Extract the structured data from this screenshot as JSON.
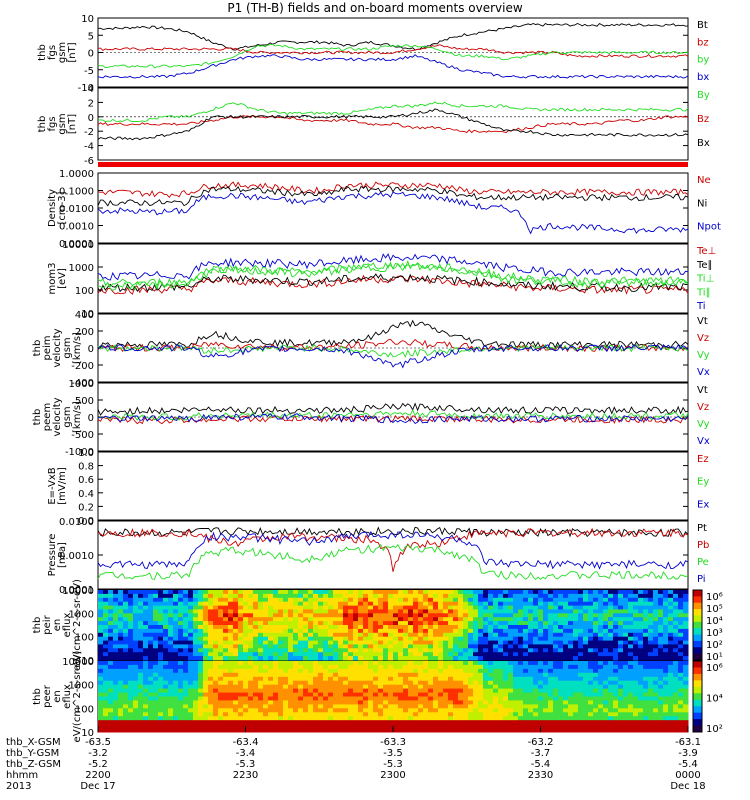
{
  "title": "P1  (TH-B) fields and on-board moments overview",
  "colors": {
    "black": "#000000",
    "red": "#cc0000",
    "green": "#22dd22",
    "blue": "#0000cc"
  },
  "chart_data": [
    {
      "type": "line",
      "ylabel": "thb fgs gsm [nT]",
      "ylim": [
        -10,
        10
      ],
      "yticks": [
        "10",
        "5",
        "0",
        "-5",
        "-10"
      ],
      "series": [
        {
          "name": "Bt",
          "color": "black",
          "values": [
            7,
            7,
            7.5,
            7,
            6,
            3,
            1,
            2,
            3,
            3,
            3,
            2,
            3,
            2,
            1,
            3,
            5,
            6,
            7,
            8,
            8,
            8,
            8,
            8,
            8,
            8,
            8
          ]
        },
        {
          "name": "bz",
          "color": "red",
          "values": [
            1,
            1,
            1,
            1,
            1,
            1,
            1,
            0,
            0,
            0,
            0,
            0,
            0,
            0,
            1,
            2,
            1,
            1,
            0,
            0,
            0,
            -1,
            -1,
            -1,
            -1,
            -1,
            -1
          ]
        },
        {
          "name": "by",
          "color": "green",
          "values": [
            -4,
            -4,
            -4,
            -4,
            -4,
            -3,
            -1,
            2,
            2,
            1,
            1,
            1,
            1,
            2,
            2,
            1,
            -1,
            -1,
            -2,
            -1,
            0,
            0,
            0,
            0,
            0,
            0,
            0
          ]
        },
        {
          "name": "bx",
          "color": "blue",
          "values": [
            -7,
            -7,
            -7,
            -7,
            -6,
            -4,
            -2,
            -1,
            -1,
            -2,
            -2,
            -2,
            -2,
            -2,
            -1,
            -3,
            -5,
            -6,
            -7,
            -7,
            -7,
            -7,
            -7,
            -7,
            -7,
            -7,
            -7
          ]
        }
      ]
    },
    {
      "type": "line",
      "ylabel": "thb fgs gsm [nT]",
      "ylim": [
        -6,
        4
      ],
      "yticks": [
        "4",
        "2",
        "0",
        "-2",
        "-4",
        "-6"
      ],
      "series": [
        {
          "name": "By",
          "color": "green",
          "values": [
            -0.5,
            -0.5,
            -0.5,
            0,
            0,
            1,
            2,
            1,
            0.5,
            0.5,
            0.5,
            0.5,
            1,
            1.5,
            1.5,
            2,
            1.5,
            1.5,
            1.5,
            1,
            1,
            1,
            1,
            1,
            1,
            1,
            1
          ]
        },
        {
          "name": "Bz",
          "color": "red",
          "values": [
            -1,
            -1,
            -1,
            -1,
            -1,
            -0.5,
            0,
            0,
            0,
            -0.5,
            -0.5,
            -0.5,
            -1,
            -1,
            -1.5,
            -1.5,
            -2,
            -2,
            -2,
            -1.5,
            -1,
            -1,
            -1,
            -0.5,
            -0.5,
            0,
            0
          ]
        },
        {
          "name": "Bx",
          "color": "black",
          "values": [
            -3,
            -3,
            -3,
            -2.5,
            -2,
            0,
            0,
            0,
            0,
            0,
            0,
            0,
            0,
            0,
            0.5,
            1,
            0,
            -1,
            -2,
            -2,
            -2.5,
            -2.5,
            -2.5,
            -2.5,
            -2.5,
            -2.5,
            -2.5
          ]
        }
      ]
    },
    {
      "type": "line",
      "log": true,
      "ylabel": "Density [cm-3]",
      "ylim": [
        0.0001,
        1
      ],
      "yticks": [
        "1.0000",
        "0.1000",
        "0.0100",
        "0.0010",
        "0.0001"
      ],
      "series": [
        {
          "name": "Ne",
          "color": "red",
          "values": [
            0.08,
            0.08,
            0.07,
            0.06,
            0.07,
            0.2,
            0.2,
            0.2,
            0.15,
            0.1,
            0.1,
            0.2,
            0.2,
            0.2,
            0.2,
            0.2,
            0.1,
            0.08,
            0.08,
            0.08,
            0.08,
            0.08,
            0.08,
            0.08,
            0.08,
            0.08,
            0.08
          ]
        },
        {
          "name": "Ni",
          "color": "black",
          "values": [
            0.02,
            0.02,
            0.02,
            0.02,
            0.02,
            0.12,
            0.12,
            0.1,
            0.08,
            0.06,
            0.06,
            0.12,
            0.12,
            0.12,
            0.12,
            0.1,
            0.05,
            0.04,
            0.04,
            0.04,
            0.04,
            0.04,
            0.04,
            0.04,
            0.04,
            0.04,
            0.04
          ]
        },
        {
          "name": "Npot",
          "color": "blue",
          "values": [
            0.007,
            0.007,
            0.006,
            0.006,
            0.007,
            0.05,
            0.05,
            0.04,
            0.03,
            0.02,
            0.03,
            0.05,
            0.05,
            0.06,
            0.05,
            0.04,
            0.02,
            0.01,
            0.01,
            0.0005,
            0.001,
            0.0008,
            0.0007,
            0.0006,
            0.0005,
            0.0006,
            0.0006
          ]
        }
      ]
    },
    {
      "type": "line",
      "log": true,
      "ylabel": "mom3 [eV]",
      "ylim": [
        10,
        10000
      ],
      "yticks": [
        "10000",
        "1000",
        "100",
        "10"
      ],
      "series": [
        {
          "name": "Te⊥",
          "color": "red",
          "values": [
            100,
            100,
            100,
            110,
            110,
            250,
            250,
            220,
            200,
            180,
            200,
            250,
            300,
            300,
            300,
            250,
            200,
            180,
            150,
            120,
            120,
            110,
            100,
            100,
            100,
            100,
            100
          ]
        },
        {
          "name": "Te∥",
          "color": "black",
          "values": [
            130,
            130,
            130,
            140,
            140,
            300,
            300,
            280,
            260,
            230,
            250,
            300,
            350,
            350,
            350,
            300,
            250,
            220,
            180,
            150,
            150,
            140,
            130,
            130,
            130,
            130,
            130
          ]
        },
        {
          "name": "Ti⊥",
          "color": "green",
          "values": [
            200,
            200,
            200,
            220,
            230,
            800,
            900,
            800,
            700,
            600,
            700,
            900,
            1100,
            1200,
            1200,
            1000,
            800,
            600,
            400,
            300,
            300,
            250,
            250,
            250,
            250,
            250,
            250
          ]
        },
        {
          "name": "Ti∥",
          "color": "green",
          "values": [
            150,
            150,
            150,
            170,
            180,
            600,
            700,
            650,
            600,
            500,
            600,
            800,
            900,
            1000,
            1000,
            900,
            700,
            500,
            300,
            250,
            250,
            200,
            200,
            200,
            200,
            200,
            200
          ]
        },
        {
          "name": "Ti",
          "color": "blue",
          "values": [
            400,
            400,
            400,
            450,
            450,
            1500,
            1600,
            1500,
            1400,
            1300,
            1500,
            1800,
            2200,
            2500,
            2500,
            2200,
            1800,
            1300,
            900,
            700,
            600,
            600,
            600,
            600,
            600,
            600,
            600
          ]
        }
      ]
    },
    {
      "type": "line",
      "ylabel": "thb peim velocity gsm [km/s]",
      "ylim": [
        -400,
        400
      ],
      "yticks": [
        "400",
        "200",
        "0",
        "-200",
        "-400"
      ],
      "series": [
        {
          "name": "Vt",
          "color": "black",
          "values": [
            40,
            40,
            40,
            40,
            40,
            180,
            120,
            80,
            60,
            60,
            60,
            80,
            120,
            250,
            300,
            200,
            120,
            60,
            50,
            40,
            40,
            40,
            40,
            40,
            40,
            40,
            40
          ]
        },
        {
          "name": "Vz",
          "color": "red",
          "values": [
            0,
            0,
            0,
            0,
            0,
            50,
            30,
            20,
            10,
            10,
            10,
            20,
            40,
            80,
            60,
            40,
            20,
            0,
            0,
            0,
            0,
            0,
            0,
            0,
            0,
            0,
            0
          ]
        },
        {
          "name": "Vy",
          "color": "green",
          "values": [
            0,
            0,
            0,
            0,
            0,
            -30,
            -20,
            -10,
            0,
            0,
            0,
            -20,
            -50,
            -80,
            -60,
            -40,
            -20,
            0,
            0,
            0,
            0,
            0,
            0,
            0,
            0,
            0,
            0
          ]
        },
        {
          "name": "Vx",
          "color": "blue",
          "values": [
            0,
            0,
            0,
            0,
            0,
            -100,
            -60,
            -20,
            -10,
            -10,
            -10,
            -40,
            -100,
            -220,
            -150,
            -80,
            -40,
            -10,
            0,
            0,
            0,
            0,
            0,
            0,
            0,
            0,
            0
          ]
        }
      ]
    },
    {
      "type": "line",
      "ylabel": "thb peem velocity gsm [km/s]",
      "ylim": [
        -1000,
        1000
      ],
      "yticks": [
        "1000",
        "500",
        "0",
        "-500",
        "-1000"
      ],
      "series": [
        {
          "name": "Vt",
          "color": "black",
          "values": [
            150,
            150,
            200,
            180,
            200,
            250,
            220,
            200,
            200,
            200,
            200,
            200,
            250,
            300,
            300,
            280,
            250,
            220,
            200,
            200,
            200,
            200,
            200,
            200,
            200,
            200,
            200
          ]
        },
        {
          "name": "Vz",
          "color": "red",
          "values": [
            -100,
            -100,
            -100,
            -100,
            -100,
            -50,
            -50,
            -50,
            -50,
            -50,
            -50,
            -50,
            -50,
            -50,
            -50,
            -50,
            -50,
            -80,
            -80,
            -80,
            -80,
            -80,
            -80,
            -80,
            -80,
            -80,
            -80
          ]
        },
        {
          "name": "Vy",
          "color": "green",
          "values": [
            0,
            0,
            0,
            0,
            0,
            50,
            50,
            50,
            50,
            50,
            50,
            80,
            80,
            100,
            100,
            80,
            50,
            30,
            30,
            30,
            30,
            30,
            30,
            30,
            30,
            30,
            30
          ]
        },
        {
          "name": "Vx",
          "color": "blue",
          "values": [
            -50,
            -50,
            -50,
            -50,
            -50,
            0,
            0,
            0,
            0,
            0,
            0,
            -50,
            -50,
            -100,
            -100,
            -50,
            -50,
            -50,
            -50,
            -50,
            -50,
            -50,
            -50,
            -50,
            -50,
            -50,
            -50
          ]
        }
      ]
    },
    {
      "type": "line",
      "ylabel": "E=-VxB [mV/m]",
      "ylim": [
        0,
        1
      ],
      "yticks": [
        "1.0",
        "0.8",
        "0.6",
        "0.4",
        "0.2",
        "0.0"
      ],
      "series": [
        {
          "name": "Ez",
          "color": "red",
          "values": []
        },
        {
          "name": "Ey",
          "color": "green",
          "values": []
        },
        {
          "name": "Ex",
          "color": "blue",
          "values": []
        }
      ]
    },
    {
      "type": "line",
      "log": true,
      "ylabel": "Pressure [nPa]",
      "ylim": [
        0.0001,
        0.1
      ],
      "yticks": [
        "0.0100",
        "0.0010",
        "0.0001"
      ],
      "series": [
        {
          "name": "Pt",
          "color": "black",
          "values": [
            0.03,
            0.03,
            0.03,
            0.03,
            0.03,
            0.035,
            0.035,
            0.035,
            0.035,
            0.035,
            0.035,
            0.035,
            0.035,
            0.035,
            0.035,
            0.035,
            0.035,
            0.03,
            0.03,
            0.03,
            0.03,
            0.03,
            0.03,
            0.03,
            0.03,
            0.03,
            0.03
          ]
        },
        {
          "name": "Pb",
          "color": "red",
          "values": [
            0.03,
            0.03,
            0.03,
            0.03,
            0.03,
            0.015,
            0.01,
            0.015,
            0.02,
            0.02,
            0.02,
            0.015,
            0.015,
            0.0006,
            0.01,
            0.01,
            0.02,
            0.03,
            0.03,
            0.03,
            0.03,
            0.03,
            0.03,
            0.03,
            0.03,
            0.03,
            0.03
          ]
        },
        {
          "name": "Pe",
          "color": "green",
          "values": [
            0.0004,
            0.0004,
            0.0004,
            0.0004,
            0.0004,
            0.004,
            0.005,
            0.004,
            0.003,
            0.002,
            0.003,
            0.005,
            0.006,
            0.006,
            0.006,
            0.005,
            0.003,
            0.0005,
            0.0004,
            0.0004,
            0.0004,
            0.0004,
            0.0004,
            0.0004,
            0.0004,
            0.0004,
            0.0004
          ]
        },
        {
          "name": "Pi",
          "color": "blue",
          "values": [
            0.0012,
            0.0012,
            0.0012,
            0.0012,
            0.0013,
            0.02,
            0.02,
            0.018,
            0.015,
            0.012,
            0.015,
            0.02,
            0.025,
            0.025,
            0.025,
            0.02,
            0.015,
            0.0015,
            0.0012,
            0.0012,
            0.0012,
            0.0012,
            0.0012,
            0.0012,
            0.0012,
            0.0012,
            0.0012
          ]
        }
      ]
    },
    {
      "type": "heatmap",
      "ylabel": "thb peir en eflux eV/(cm^2-s-sr-eV)",
      "yticks": [
        "10000",
        "1000",
        "100",
        "10"
      ],
      "colorbar_ticks": [
        "10⁶",
        "10⁵",
        "10⁴",
        "10³",
        "10²",
        "10¹"
      ],
      "profile": [
        2,
        2,
        2,
        2,
        2,
        5,
        5,
        4,
        4,
        4,
        4,
        5,
        5,
        5,
        5,
        5,
        4,
        2,
        2,
        2,
        2,
        2,
        2,
        2,
        2,
        2,
        2
      ]
    },
    {
      "type": "heatmap",
      "ylabel": "thb peer en eflux eV/(cm^2-s-sr-eV)",
      "yticks": [
        "10000",
        "1000",
        "100",
        "10"
      ],
      "colorbar_ticks": [
        "10⁶",
        "10⁴",
        "10²"
      ],
      "profile": [
        3,
        3,
        3,
        3,
        3,
        5,
        5,
        5,
        5,
        5,
        5,
        5,
        5,
        5,
        5,
        5,
        5,
        4,
        4,
        3,
        3,
        3,
        3,
        3,
        3,
        3,
        3
      ]
    }
  ],
  "x_axis": {
    "rows": [
      {
        "label": "thb_X-GSM",
        "ticks": [
          "-63.5",
          "-63.4",
          "-63.3",
          "-63.2",
          "-63.1"
        ]
      },
      {
        "label": "thb_Y-GSM",
        "ticks": [
          "-3.2",
          "-3.4",
          "-3.5",
          "-3.7",
          "-3.9"
        ]
      },
      {
        "label": "thb_Z-GSM",
        "ticks": [
          "-5.2",
          "-5.3",
          "-5.3",
          "-5.4",
          "-5.4"
        ]
      },
      {
        "label": "hhmm",
        "ticks": [
          "2200",
          "2230",
          "2300",
          "2330",
          "0000"
        ]
      },
      {
        "label": "2013",
        "ticks": [
          "Dec 17",
          "",
          "",
          "",
          "Dec 18"
        ]
      }
    ]
  }
}
